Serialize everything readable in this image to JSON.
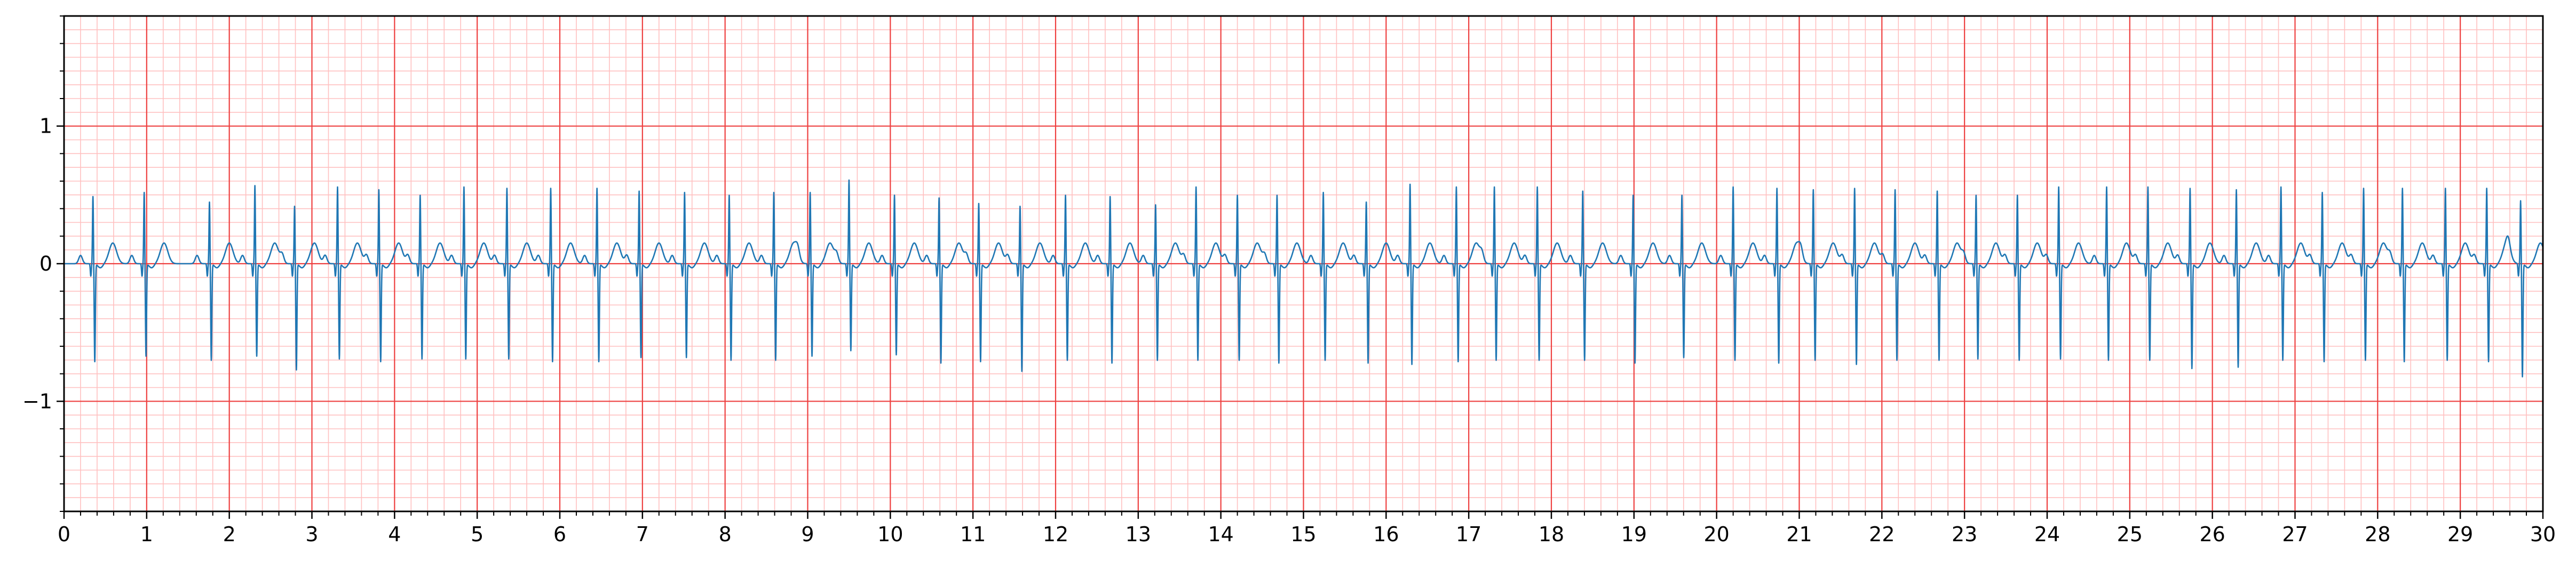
{
  "chart_data": {
    "type": "line",
    "title": "",
    "xlabel": "",
    "ylabel": "",
    "xlim": [
      0,
      30
    ],
    "ylim": [
      -1.8,
      1.8
    ],
    "x_ticks": [
      "0",
      "1",
      "2",
      "3",
      "4",
      "5",
      "6",
      "7",
      "8",
      "9",
      "10",
      "11",
      "12",
      "13",
      "14",
      "15",
      "16",
      "17",
      "18",
      "19",
      "20",
      "21",
      "22",
      "23",
      "24",
      "25",
      "26",
      "27",
      "28",
      "29",
      "30"
    ],
    "y_ticks": [
      {
        "value": 1,
        "label": "1"
      },
      {
        "value": 0,
        "label": "0"
      },
      {
        "value": -1,
        "label": "−1"
      }
    ],
    "grid": {
      "major": true,
      "minor": true,
      "major_x_step": 1,
      "major_y_step": 1,
      "minor_x_step": 0.2,
      "minor_y_step": 0.1
    },
    "colors": {
      "trace": "#1f77b4",
      "major_grid": "#ee4040",
      "minor_grid": "#ffc0c0",
      "axes": "#000000"
    },
    "series": [
      {
        "beat_times": [
          0.35,
          0.97,
          1.76,
          2.31,
          2.79,
          3.31,
          3.81,
          4.31,
          4.84,
          5.36,
          5.89,
          6.45,
          6.96,
          7.51,
          8.05,
          8.59,
          9.03,
          9.5,
          10.05,
          10.59,
          11.07,
          11.57,
          12.12,
          12.66,
          13.21,
          13.7,
          14.2,
          14.68,
          15.24,
          15.76,
          16.29,
          16.85,
          17.31,
          17.83,
          18.38,
          18.99,
          19.58,
          20.2,
          20.73,
          21.17,
          21.67,
          22.16,
          22.67,
          23.14,
          23.64,
          24.14,
          24.72,
          25.22,
          25.73,
          26.29,
          26.83,
          27.33,
          27.83,
          28.3,
          28.82,
          29.32,
          29.73
        ],
        "r_peaks": [
          0.49,
          0.52,
          0.45,
          0.57,
          0.42,
          0.56,
          0.54,
          0.5,
          0.56,
          0.55,
          0.55,
          0.55,
          0.53,
          0.52,
          0.5,
          0.52,
          0.52,
          0.61,
          0.5,
          0.48,
          0.44,
          0.42,
          0.5,
          0.49,
          0.43,
          0.56,
          0.5,
          0.5,
          0.52,
          0.45,
          0.58,
          0.56,
          0.56,
          0.56,
          0.53,
          0.5,
          0.5,
          0.56,
          0.55,
          0.54,
          0.55,
          0.54,
          0.53,
          0.5,
          0.5,
          0.56,
          0.56,
          0.56,
          0.55,
          0.54,
          0.56,
          0.52,
          0.55,
          0.55,
          0.55,
          0.55,
          0.46
        ],
        "s_troughs": [
          -0.71,
          -0.67,
          -0.7,
          -0.67,
          -0.77,
          -0.69,
          -0.71,
          -0.69,
          -0.69,
          -0.69,
          -0.71,
          -0.71,
          -0.68,
          -0.68,
          -0.7,
          -0.7,
          -0.67,
          -0.63,
          -0.66,
          -0.72,
          -0.71,
          -0.78,
          -0.7,
          -0.72,
          -0.7,
          -0.7,
          -0.7,
          -0.72,
          -0.7,
          -0.72,
          -0.73,
          -0.71,
          -0.7,
          -0.7,
          -0.7,
          -0.72,
          -0.68,
          -0.7,
          -0.72,
          -0.7,
          -0.73,
          -0.7,
          -0.7,
          -0.69,
          -0.7,
          -0.69,
          -0.7,
          -0.7,
          -0.76,
          -0.75,
          -0.7,
          -0.71,
          -0.7,
          -0.71,
          -0.7,
          -0.71,
          -0.82
        ],
        "t_wave_amplitude": 0.15,
        "p_wave_amplitude": 0.06
      }
    ]
  }
}
